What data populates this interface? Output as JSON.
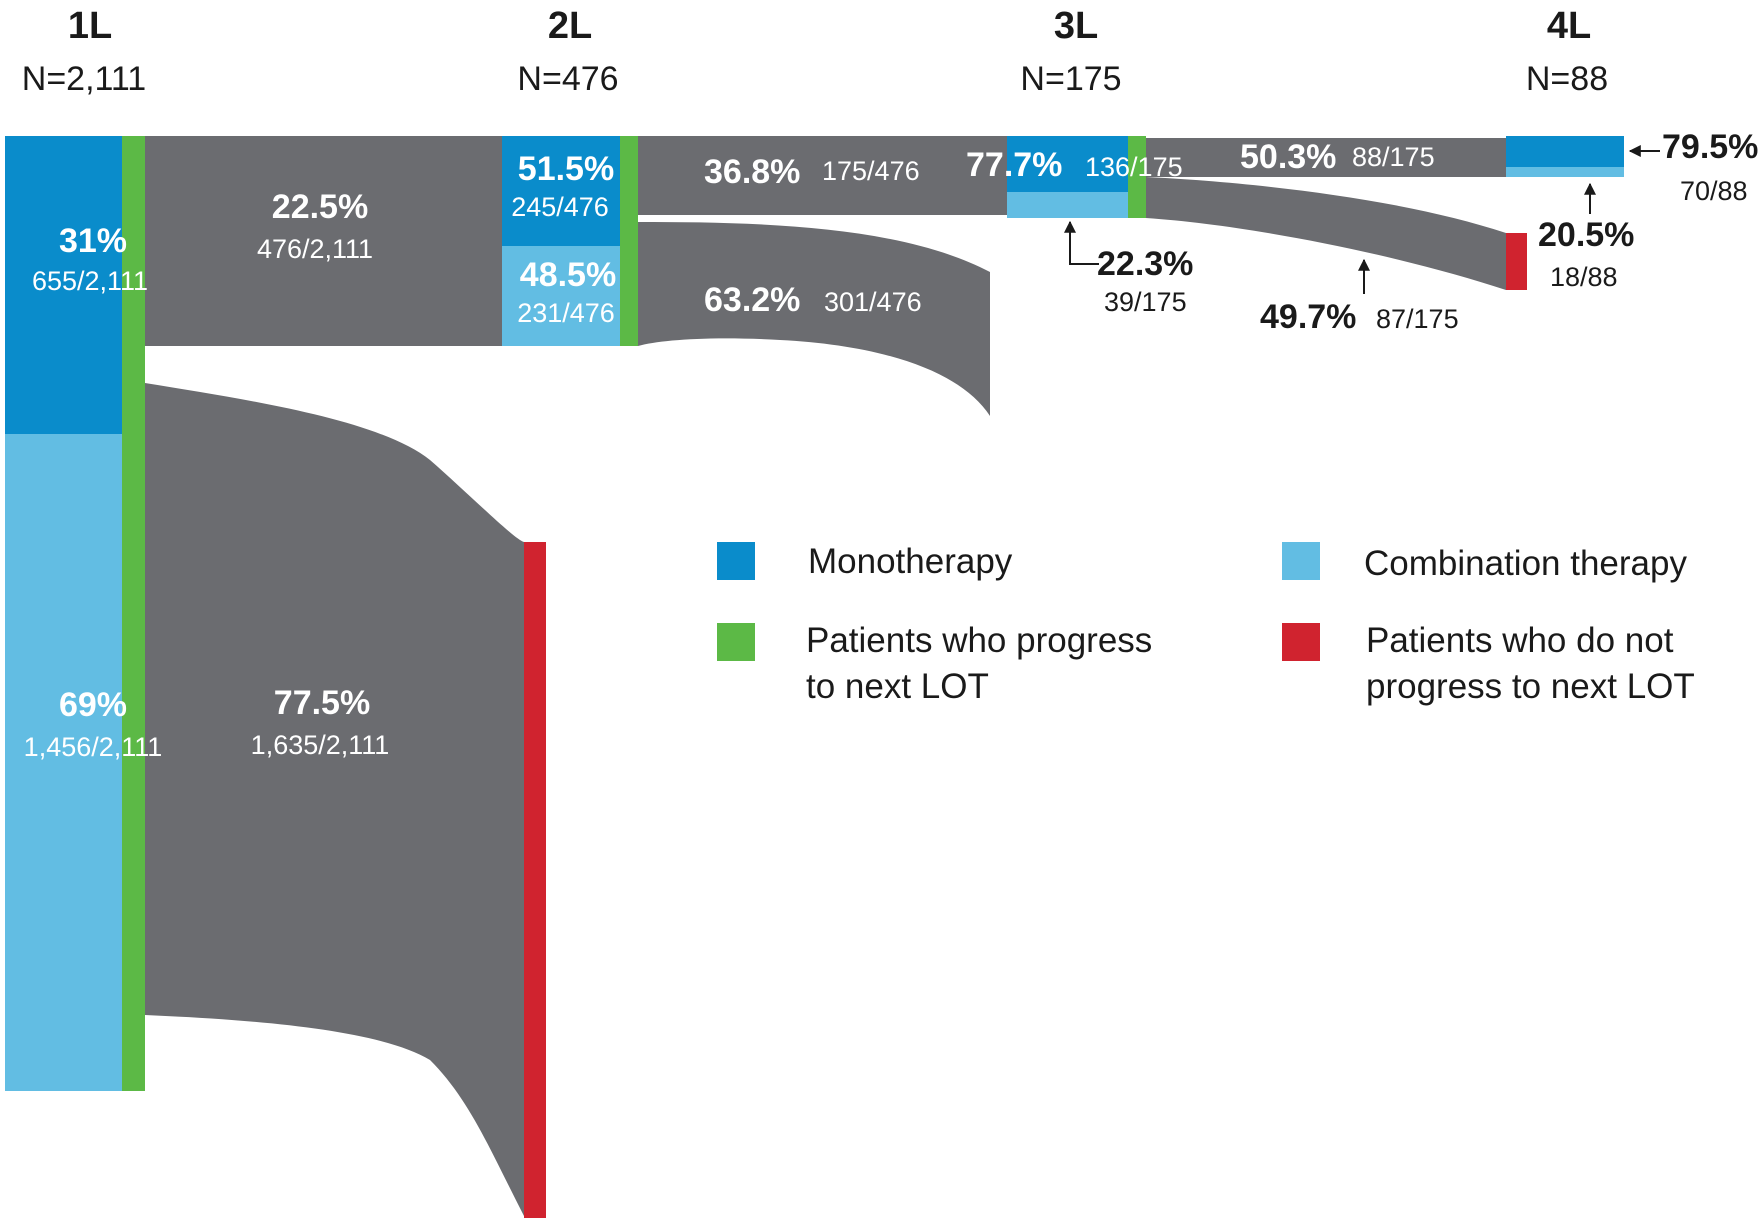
{
  "colors": {
    "monotherapy": "#0a8ccb",
    "combination": "#62bde3",
    "progress": "#5cb946",
    "no_progress": "#d0232f",
    "flow": "#6b6c70"
  },
  "columns": [
    {
      "label": "1L",
      "n": "N=2,111"
    },
    {
      "label": "2L",
      "n": "N=476"
    },
    {
      "label": "3L",
      "n": "N=175"
    },
    {
      "label": "4L",
      "n": "N=88"
    }
  ],
  "line1": {
    "mono": {
      "pct": "31%",
      "frac": "655/2,111",
      "value": 655
    },
    "combo": {
      "pct": "69%",
      "frac": "1,456/2,111",
      "value": 1456
    },
    "progress": {
      "pct": "22.5%",
      "frac": "476/2,111",
      "value": 476
    },
    "no_progress": {
      "pct": "77.5%",
      "frac": "1,635/2,111",
      "value": 1635
    }
  },
  "line2": {
    "mono": {
      "pct": "51.5%",
      "frac": "245/476",
      "value": 245
    },
    "combo": {
      "pct": "48.5%",
      "frac": "231/476",
      "value": 231
    },
    "progress": {
      "pct": "36.8%",
      "frac": "175/476",
      "value": 175
    },
    "no_progress": {
      "pct": "63.2%",
      "frac": "301/476",
      "value": 301
    }
  },
  "line3": {
    "mono": {
      "pct": "77.7%",
      "frac": "136/175",
      "value": 136
    },
    "combo": {
      "pct": "22.3%",
      "frac": "39/175",
      "value": 39
    },
    "progress": {
      "pct": "50.3%",
      "frac": "88/175",
      "value": 88
    },
    "no_progress": {
      "pct": "49.7%",
      "frac": "87/175",
      "value": 87
    }
  },
  "line4": {
    "mono": {
      "pct": "79.5%",
      "frac": "70/88",
      "value": 70
    },
    "combo": {
      "pct": "20.5%",
      "frac": "18/88",
      "value": 18
    }
  },
  "legend": {
    "monotherapy": "Monotherapy",
    "combination": "Combination therapy",
    "progress": [
      "Patients who progress",
      "to next LOT"
    ],
    "no_progress": [
      "Patients who do not",
      "progress to next LOT"
    ]
  }
}
